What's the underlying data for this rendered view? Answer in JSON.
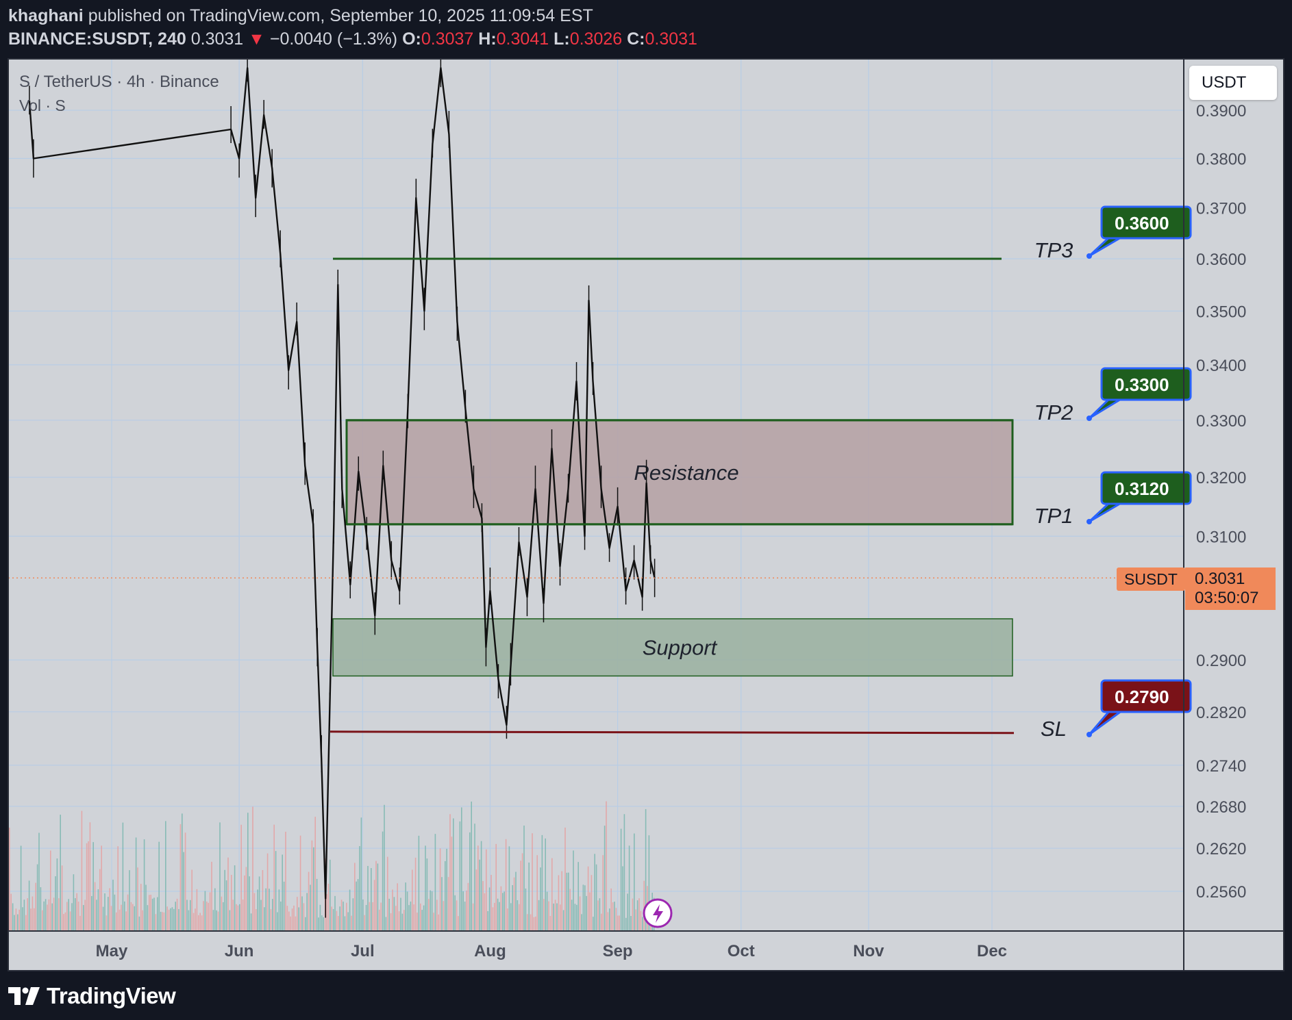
{
  "header": {
    "author": "khaghani",
    "published_text": "published on TradingView.com, September 10, 2025 11:09:54 EST",
    "symbol": "BINANCE:SUSDT, 240",
    "last_price": "0.3031",
    "change_arrow": "▼",
    "change": "−0.0040 (−1.3%)",
    "o_label": "O:",
    "o_value": "0.3037",
    "h_label": "H:",
    "h_value": "0.3041",
    "l_label": "L:",
    "l_value": "0.3026",
    "c_label": "C:",
    "c_value": "0.3031"
  },
  "legend": {
    "title": "S / TetherUS · 4h · Binance",
    "volume": "Vol · S"
  },
  "currency_badge": "USDT",
  "price_marker": {
    "symbol": "SUSDT",
    "price": "0.3031",
    "countdown": "03:50:07"
  },
  "footer": {
    "brand": "TradingView"
  },
  "colors": {
    "background": "#131722",
    "chart_bg": "#d0d3d8",
    "target_green": "#1e5e1e",
    "stop_red": "#7a1218",
    "callout_border": "#2962ff",
    "resistance_fill": "#b5a0a3",
    "support_fill": "#9ab0a0",
    "price_marker": "#f0895a"
  },
  "chart_data": {
    "type": "candlestick",
    "symbol": "BINANCE:SUSDT",
    "interval": "240",
    "x_axis_months": [
      "May",
      "Jun",
      "Jul",
      "Aug",
      "Sep",
      "Oct",
      "Nov",
      "Dec"
    ],
    "y_ticks": [
      "0.3900",
      "0.3800",
      "0.3700",
      "0.3600",
      "0.3500",
      "0.3400",
      "0.3300",
      "0.3200",
      "0.3100",
      "0.2900",
      "0.2820",
      "0.2740",
      "0.2680",
      "0.2620",
      "0.2560"
    ],
    "y_scale": "log",
    "grid": true,
    "current_price": 0.3031,
    "levels": [
      {
        "name": "TP3",
        "price": 0.36,
        "label": "0.3600",
        "kind": "target"
      },
      {
        "name": "TP2",
        "price": 0.33,
        "label": "0.3300",
        "kind": "target"
      },
      {
        "name": "TP1",
        "price": 0.312,
        "label": "0.3120",
        "kind": "target"
      },
      {
        "name": "SL",
        "price": 0.279,
        "label": "0.2790",
        "kind": "stop"
      }
    ],
    "zones": [
      {
        "label": "Resistance",
        "from": 0.312,
        "to": 0.33
      },
      {
        "label": "Support",
        "from": 0.2875,
        "to": 0.2965
      }
    ],
    "price_path": [
      [
        "2025-04-11",
        0.392
      ],
      [
        "2025-04-12",
        0.38
      ],
      [
        "2025-05-30",
        0.386
      ],
      [
        "2025-06-01",
        0.38
      ],
      [
        "2025-06-03",
        0.399
      ],
      [
        "2025-06-05",
        0.372
      ],
      [
        "2025-06-07",
        0.389
      ],
      [
        "2025-06-09",
        0.378
      ],
      [
        "2025-06-11",
        0.361
      ],
      [
        "2025-06-13",
        0.339
      ],
      [
        "2025-06-15",
        0.348
      ],
      [
        "2025-06-17",
        0.322
      ],
      [
        "2025-06-19",
        0.312
      ],
      [
        "2025-06-20",
        0.292
      ],
      [
        "2025-06-21",
        0.275
      ],
      [
        "2025-06-22",
        0.255
      ],
      [
        "2025-06-23",
        0.282
      ],
      [
        "2025-06-24",
        0.312
      ],
      [
        "2025-06-25",
        0.355
      ],
      [
        "2025-06-26",
        0.318
      ],
      [
        "2025-06-28",
        0.302
      ],
      [
        "2025-06-30",
        0.321
      ],
      [
        "2025-07-02",
        0.31
      ],
      [
        "2025-07-04",
        0.297
      ],
      [
        "2025-07-06",
        0.322
      ],
      [
        "2025-07-08",
        0.306
      ],
      [
        "2025-07-10",
        0.301
      ],
      [
        "2025-07-12",
        0.332
      ],
      [
        "2025-07-14",
        0.372
      ],
      [
        "2025-07-16",
        0.35
      ],
      [
        "2025-07-18",
        0.383
      ],
      [
        "2025-07-20",
        0.399
      ],
      [
        "2025-07-22",
        0.385
      ],
      [
        "2025-07-24",
        0.348
      ],
      [
        "2025-07-26",
        0.332
      ],
      [
        "2025-07-28",
        0.318
      ],
      [
        "2025-07-30",
        0.313
      ],
      [
        "2025-07-31",
        0.292
      ],
      [
        "2025-08-01",
        0.301
      ],
      [
        "2025-08-03",
        0.287
      ],
      [
        "2025-08-05",
        0.28
      ],
      [
        "2025-08-06",
        0.289
      ],
      [
        "2025-08-08",
        0.309
      ],
      [
        "2025-08-10",
        0.3
      ],
      [
        "2025-08-12",
        0.318
      ],
      [
        "2025-08-14",
        0.299
      ],
      [
        "2025-08-16",
        0.325
      ],
      [
        "2025-08-18",
        0.305
      ],
      [
        "2025-08-20",
        0.318
      ],
      [
        "2025-08-22",
        0.337
      ],
      [
        "2025-08-24",
        0.31
      ],
      [
        "2025-08-25",
        0.352
      ],
      [
        "2025-08-26",
        0.337
      ],
      [
        "2025-08-28",
        0.318
      ],
      [
        "2025-08-30",
        0.308
      ],
      [
        "2025-09-01",
        0.315
      ],
      [
        "2025-09-03",
        0.301
      ],
      [
        "2025-09-05",
        0.306
      ],
      [
        "2025-09-07",
        0.3
      ],
      [
        "2025-09-08",
        0.319
      ],
      [
        "2025-09-09",
        0.306
      ],
      [
        "2025-09-10",
        0.3031
      ]
    ]
  }
}
